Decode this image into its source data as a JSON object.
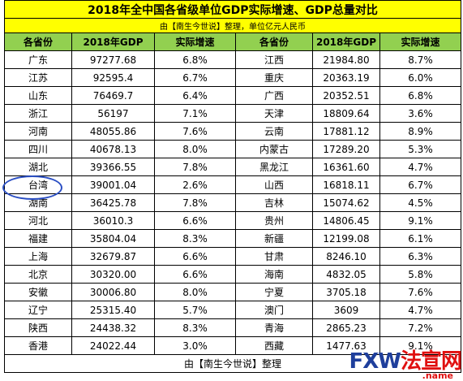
{
  "header": {
    "title": "2018年全中国各省级单位GDP实际增速、GDP总量对比",
    "subtitle": "由【南生今世说】整理，单位亿元人民币"
  },
  "table": {
    "columns": [
      "各省份",
      "2018年GDP",
      "实际增速",
      "各省份",
      "2018年GDP",
      "实际增速"
    ],
    "rows": [
      [
        "广东",
        "97277.68",
        "6.8%",
        "江西",
        "21984.80",
        "8.7%"
      ],
      [
        "江苏",
        "92595.4",
        "6.7%",
        "重庆",
        "20363.19",
        "6.0%"
      ],
      [
        "山东",
        "76469.7",
        "6.4%",
        "广西",
        "20352.51",
        "6.8%"
      ],
      [
        "浙江",
        "56197",
        "7.1%",
        "天津",
        "18809.64",
        "3.6%"
      ],
      [
        "河南",
        "48055.86",
        "7.6%",
        "云南",
        "17881.12",
        "8.9%"
      ],
      [
        "四川",
        "40678.13",
        "8.0%",
        "内蒙古",
        "17289.20",
        "5.3%"
      ],
      [
        "湖北",
        "39366.55",
        "7.8%",
        "黑龙江",
        "16361.60",
        "4.7%"
      ],
      [
        "台湾",
        "39001.04",
        "2.6%",
        "山西",
        "16818.11",
        "6.7%"
      ],
      [
        "湖南",
        "36425.78",
        "7.8%",
        "吉林",
        "15074.62",
        "4.5%"
      ],
      [
        "河北",
        "36010.3",
        "6.6%",
        "贵州",
        "14806.45",
        "9.1%"
      ],
      [
        "福建",
        "35804.04",
        "8.3%",
        "新疆",
        "12199.08",
        "6.1%"
      ],
      [
        "上海",
        "32679.87",
        "6.6%",
        "甘肃",
        "8246.10",
        "6.3%"
      ],
      [
        "北京",
        "30320.00",
        "6.6%",
        "海南",
        "4832.05",
        "5.8%"
      ],
      [
        "安徽",
        "30006.80",
        "8.0%",
        "宁夏",
        "3705.18",
        "7.6%"
      ],
      [
        "辽宁",
        "25315.40",
        "5.7%",
        "澳门",
        "3609",
        "4.7%"
      ],
      [
        "陕西",
        "24438.32",
        "8.3%",
        "青海",
        "2865.23",
        "7.2%"
      ],
      [
        "香港",
        "24022.44",
        "3.0%",
        "西藏",
        "1477.63",
        "9.1%"
      ]
    ],
    "footer": "由【南生今世说】整理"
  },
  "watermark": {
    "text": "FXW法宣网",
    "sub": ".name"
  }
}
